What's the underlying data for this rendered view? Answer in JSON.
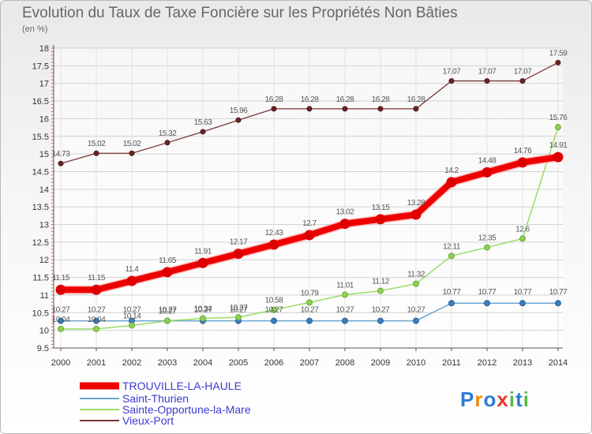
{
  "header": {
    "title": "Evolution du Taux de Taxe Foncière sur les Propriétés Non Bâties",
    "unit": "(en %)"
  },
  "logo": {
    "text": "Proxiti",
    "letters": [
      "P",
      "r",
      "o",
      "x",
      "i",
      "t",
      "i"
    ],
    "colors": [
      "#2e7bd4",
      "#f08a14",
      "#2e7bd4",
      "#e8392b",
      "#58b947",
      "#2e7bd4",
      "#58b947"
    ]
  },
  "chart_data": {
    "type": "line",
    "title": "Evolution du Taux de Taxe Foncière sur les Propriétés Non Bâties",
    "ylabel": "(en %)",
    "xlabel": "",
    "ylim": [
      9.5,
      18
    ],
    "yticks": [
      "9.5",
      "10",
      "10.5",
      "11",
      "11.5",
      "12",
      "12.5",
      "13",
      "13.5",
      "14",
      "14.5",
      "15",
      "15.5",
      "16",
      "16.5",
      "17",
      "17.5",
      "18"
    ],
    "x": [
      "2000",
      "2001",
      "2002",
      "2003",
      "2004",
      "2005",
      "2006",
      "2007",
      "2008",
      "2009",
      "2010",
      "2011",
      "2012",
      "2013",
      "2014"
    ],
    "legend_position": "bottom-left",
    "series": [
      {
        "name": "TROUVILLE-LA-HAULE",
        "color": "#ee0000",
        "values": [
          11.15,
          11.15,
          11.4,
          11.65,
          11.91,
          12.17,
          12.43,
          12.7,
          13.02,
          13.15,
          13.28,
          14.2,
          14.48,
          14.76,
          14.91
        ],
        "labels": [
          "11.15",
          "11.15",
          "11.4",
          "11.65",
          "11.91",
          "12.17",
          "12.43",
          "12.7",
          "13.02",
          "13.15",
          "13.28",
          "14.2",
          "14.48",
          "14.76",
          "14.91"
        ]
      },
      {
        "name": "Saint-Thurien",
        "color": "#6aa4d3",
        "values": [
          10.27,
          10.27,
          10.27,
          10.27,
          10.27,
          10.27,
          10.27,
          10.27,
          10.27,
          10.27,
          10.27,
          10.77,
          10.77,
          10.77,
          10.77
        ],
        "labels": [
          "10.27",
          "10.27",
          "10.27",
          "10.27",
          "10.27",
          "10.27",
          "10.27",
          "10.27",
          "10.27",
          "10.27",
          "10.27",
          "10.77",
          "10.77",
          "10.77",
          "10.77"
        ]
      },
      {
        "name": "Sainte-Opportune-la-Mare",
        "color": "#99dd66",
        "values": [
          10.04,
          10.04,
          10.14,
          10.27,
          10.34,
          10.37,
          10.58,
          10.79,
          11.01,
          11.12,
          11.32,
          12.11,
          12.35,
          12.6,
          15.76
        ],
        "labels": [
          "10.04",
          "10.04",
          "10.14",
          "10.27",
          "10.34",
          "10.37",
          "10.58",
          "10.79",
          "11.01",
          "11.12",
          "11.32",
          "12.11",
          "12.35",
          "12.6",
          "15.76"
        ]
      },
      {
        "name": "Vieux-Port",
        "color": "#7a3535",
        "values": [
          14.73,
          15.02,
          15.02,
          15.32,
          15.63,
          15.96,
          16.28,
          16.28,
          16.28,
          16.28,
          16.28,
          17.07,
          17.07,
          17.07,
          17.59
        ],
        "labels": [
          "14.73",
          "15.02",
          "15.02",
          "15.32",
          "15.63",
          "15.96",
          "16.28",
          "16.28",
          "16.28",
          "16.28",
          "16.28",
          "17.07",
          "17.07",
          "17.07",
          "17.59"
        ]
      }
    ]
  }
}
